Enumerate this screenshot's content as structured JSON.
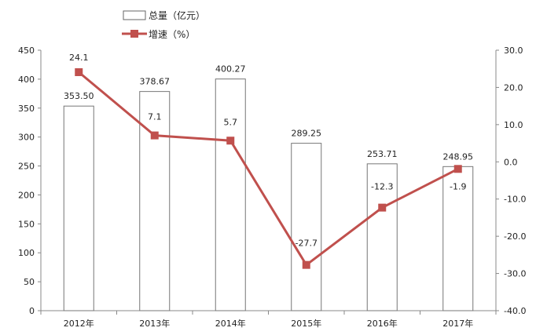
{
  "chart_data": {
    "type": "bar",
    "categories": [
      "2012年",
      "2013年",
      "2014年",
      "2015年",
      "2016年",
      "2017年"
    ],
    "series": [
      {
        "name": "总量（亿元）",
        "type": "bar",
        "axis": "left",
        "values": [
          353.5,
          378.67,
          400.27,
          289.25,
          253.71,
          248.95
        ],
        "labels": [
          "353.50",
          "378.67",
          "400.27",
          "289.25",
          "253.71",
          "248.95"
        ]
      },
      {
        "name": "增速（%）",
        "type": "line",
        "axis": "right",
        "color": "#c0504d",
        "values": [
          24.1,
          7.1,
          5.7,
          -27.7,
          -12.3,
          -1.9
        ],
        "labels": [
          "24.1",
          "7.1",
          "5.7",
          "-27.7",
          "-12.3",
          "-1.9"
        ]
      }
    ],
    "y_left": {
      "min": 0,
      "max": 450,
      "ticks": [
        "0",
        "50",
        "100",
        "150",
        "200",
        "250",
        "300",
        "350",
        "400",
        "450"
      ]
    },
    "y_right": {
      "min": -40,
      "max": 30,
      "ticks": [
        "30.0",
        "20.0",
        "10.0",
        "0.0",
        "-10.0",
        "-20.0",
        "-30.0",
        "-40.0"
      ]
    },
    "grid": false,
    "legend": {
      "position": "top-left"
    }
  }
}
